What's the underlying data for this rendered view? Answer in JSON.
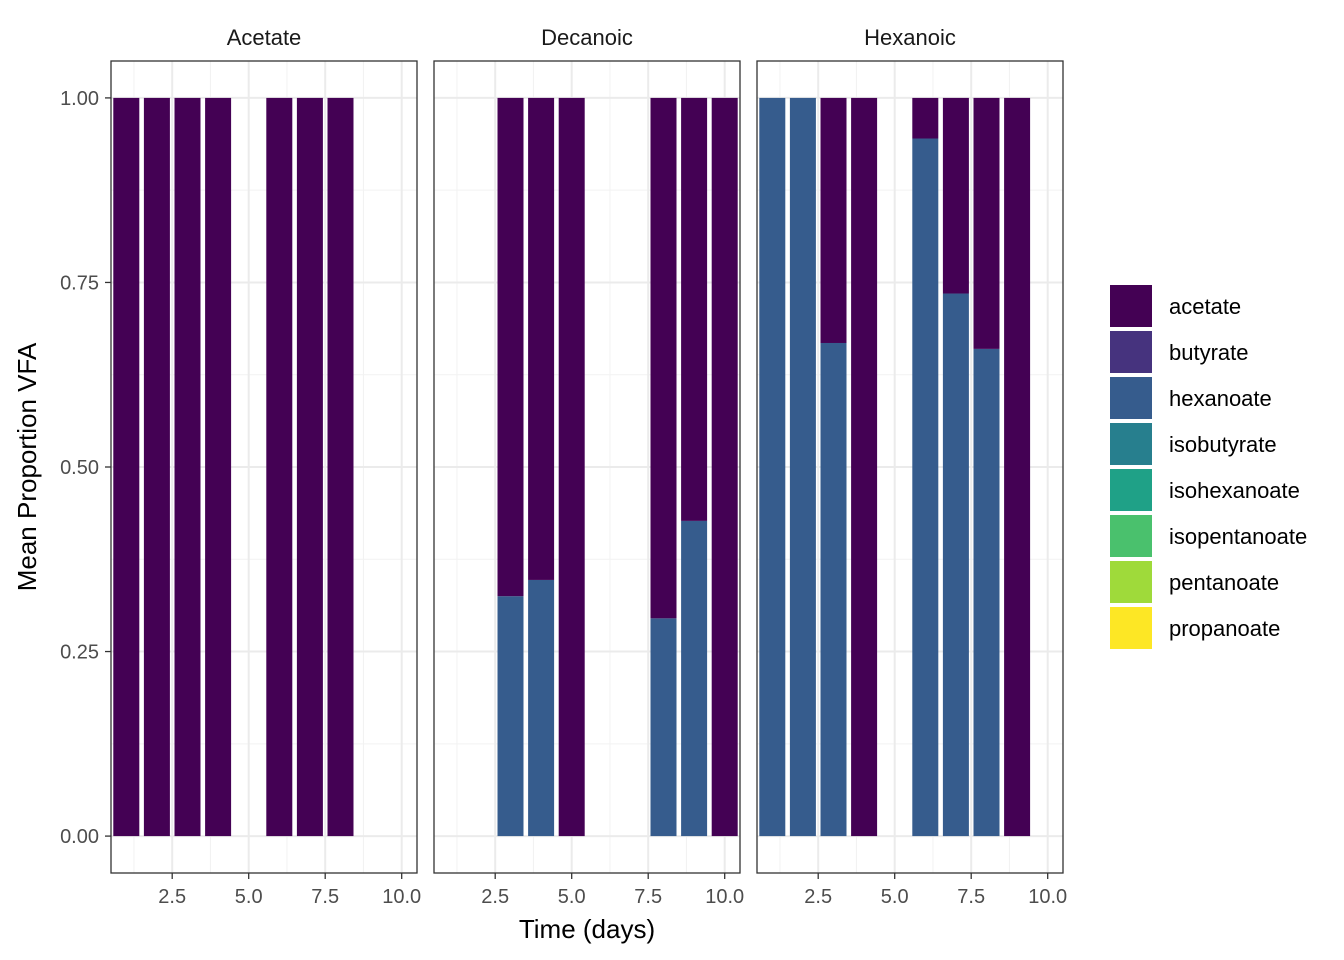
{
  "chart_data": {
    "type": "bar",
    "stacked": true,
    "facets": [
      "Acetate",
      "Decanoic",
      "Hexanoic"
    ],
    "xlabel": "Time (days)",
    "ylabel": "Mean Proportion VFA",
    "xlim": [
      0.5,
      10.5
    ],
    "ylim": [
      -0.05,
      1.05
    ],
    "x_ticks": [
      2.5,
      5.0,
      7.5,
      10.0
    ],
    "x_tick_labels": [
      "2.5",
      "5.0",
      "7.5",
      "10.0"
    ],
    "y_ticks": [
      0,
      0.25,
      0.5,
      0.75,
      1.0
    ],
    "y_tick_labels": [
      "0.00",
      "0.25",
      "0.50",
      "0.75",
      "1.00"
    ],
    "grid": true,
    "legend": {
      "position": "right",
      "entries": [
        {
          "name": "acetate",
          "color": "#440154"
        },
        {
          "name": "butyrate",
          "color": "#46337E"
        },
        {
          "name": "hexanoate",
          "color": "#365C8D"
        },
        {
          "name": "isobutyrate",
          "color": "#277F8E"
        },
        {
          "name": "isohexanoate",
          "color": "#1FA187"
        },
        {
          "name": "isopentanoate",
          "color": "#4AC16D"
        },
        {
          "name": "pentanoate",
          "color": "#9FDA3A"
        },
        {
          "name": "propanoate",
          "color": "#FDE725"
        }
      ]
    },
    "panels": [
      {
        "facet": "Acetate",
        "x": [
          1,
          2,
          3,
          4,
          6,
          7,
          8
        ],
        "series": [
          {
            "name": "hexanoate",
            "values": [
              0,
              0,
              0,
              0,
              0,
              0,
              0
            ]
          },
          {
            "name": "acetate",
            "values": [
              1,
              1,
              1,
              1,
              1,
              1,
              1
            ]
          }
        ]
      },
      {
        "facet": "Decanoic",
        "x": [
          3,
          4,
          5,
          8,
          9,
          10
        ],
        "series": [
          {
            "name": "hexanoate",
            "values": [
              0.325,
              0.347,
              0,
              0.295,
              0.427,
              0
            ]
          },
          {
            "name": "acetate",
            "values": [
              0.675,
              0.653,
              1,
              0.705,
              0.573,
              1
            ]
          }
        ]
      },
      {
        "facet": "Hexanoic",
        "x": [
          1,
          2,
          3,
          4,
          6,
          7,
          8,
          9
        ],
        "series": [
          {
            "name": "hexanoate",
            "values": [
              1,
              1,
              0.668,
              0,
              0.945,
              0.735,
              0.66,
              0
            ]
          },
          {
            "name": "acetate",
            "values": [
              0,
              0,
              0.332,
              1,
              0.055,
              0.265,
              0.34,
              1
            ]
          }
        ]
      }
    ]
  }
}
